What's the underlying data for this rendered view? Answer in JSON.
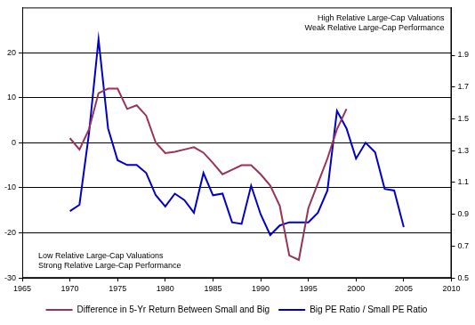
{
  "chart_data": {
    "type": "line",
    "x": [
      1970,
      1971,
      1972,
      1973,
      1974,
      1975,
      1976,
      1977,
      1978,
      1979,
      1980,
      1981,
      1982,
      1983,
      1984,
      1985,
      1986,
      1987,
      1988,
      1989,
      1990,
      1991,
      1992,
      1993,
      1994,
      1995,
      1996,
      1997,
      1998,
      1999,
      2000,
      2001,
      2002,
      2003,
      2004,
      2005
    ],
    "series": [
      {
        "name": "Difference in 5-Yr Return Between Small and Big",
        "color": "#993355",
        "values": [
          1,
          -1.5,
          3,
          11,
          12,
          12,
          7.5,
          8.3,
          6,
          0,
          -2.3,
          -2,
          -1.5,
          -1,
          -2.2,
          -4.5,
          -7,
          -6,
          -5,
          -5,
          -7,
          -9.5,
          -14,
          -25,
          -26,
          -14.5,
          -9,
          -3.5,
          3,
          7.5,
          null,
          null,
          null,
          null,
          null,
          null
        ]
      },
      {
        "name": "Big PE Ratio / Small PE Ratio",
        "color": "#0000cc",
        "axis": "y2",
        "values": [
          0.92,
          0.96,
          1.41,
          2.0,
          1.44,
          1.24,
          1.21,
          1.21,
          1.16,
          1.02,
          0.95,
          1.03,
          0.99,
          0.91,
          1.16,
          1.02,
          1.03,
          0.85,
          0.84,
          1.08,
          0.9,
          0.77,
          0.83,
          0.85,
          0.85,
          0.85,
          0.91,
          1.05,
          1.55,
          1.44,
          1.25,
          1.35,
          1.29,
          1.06,
          1.05,
          0.82
        ]
      }
    ],
    "xlim": [
      1965,
      2010
    ],
    "xticks": [
      1965,
      1970,
      1975,
      1980,
      1985,
      1990,
      1995,
      2000,
      2005,
      2010
    ],
    "ylim": [
      -30,
      30
    ],
    "yticks": [
      -30,
      -20,
      -10,
      0,
      10,
      20
    ],
    "y2lim": [
      0.5,
      2.2
    ],
    "y2ticks": [
      0.5,
      0.7,
      0.9,
      1.1,
      1.3,
      1.5,
      1.7,
      1.9
    ],
    "grid": true,
    "legend": "bottom",
    "annotations": [
      [
        "High Relative Large-Cap Valuations",
        "Weak Relative Large-Cap Performance"
      ],
      [
        "Low Relative Large-Cap Valuations",
        "Strong Relative Large-Cap Performance"
      ]
    ]
  }
}
